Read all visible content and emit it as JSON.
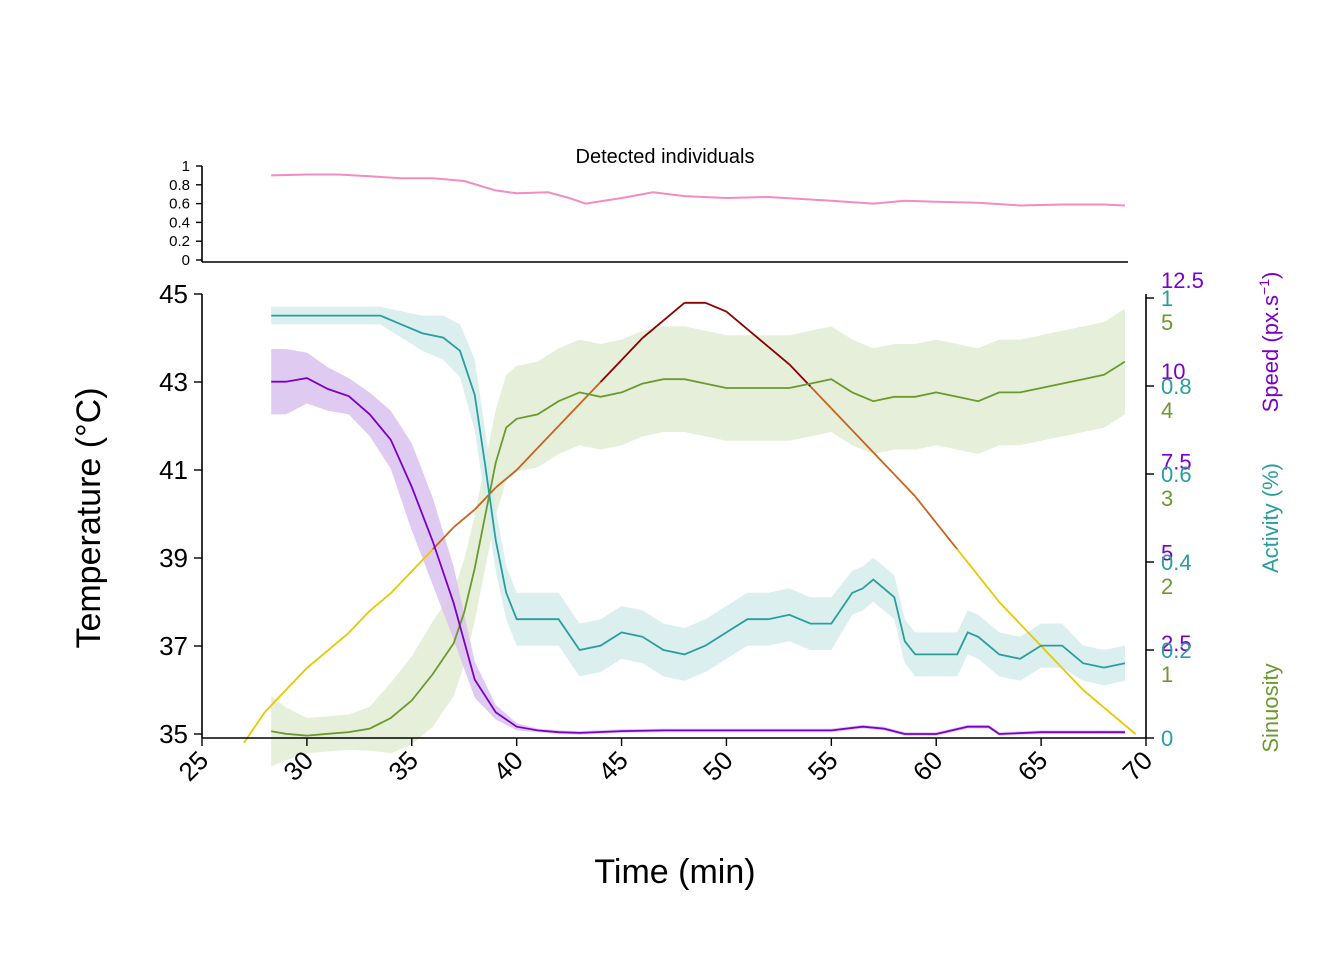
{
  "colors": {
    "axis": "#000000",
    "detected": "#f28cc2",
    "speed": "#7b00c8",
    "speed_band": "#d9c2ee",
    "activity": "#2a9d9d",
    "activity_band": "#d3eceb",
    "sinuosity": "#6b9a2e",
    "sinuosity_band": "#dde9cc",
    "temp_hot": "#8b0000",
    "temp_warm": "#c8641e",
    "temp_cool": "#e8c800"
  },
  "chart_data": [
    {
      "type": "line",
      "title": "Detected individuals",
      "ylim": [
        0,
        1
      ],
      "yticks": [
        "0",
        "0.2",
        "0.4",
        "0.6",
        "0.8",
        "1"
      ],
      "grid": false,
      "series": [
        {
          "x": [
            28.3,
            30,
            31.5,
            33,
            34.5,
            36,
            37.5,
            39,
            40,
            41.5,
            42.5,
            43.3,
            45,
            46.5,
            48,
            50,
            52,
            55,
            57,
            58.5,
            60,
            62,
            64,
            66,
            68,
            69
          ],
          "y": [
            0.9,
            0.91,
            0.91,
            0.89,
            0.87,
            0.87,
            0.84,
            0.74,
            0.71,
            0.72,
            0.66,
            0.6,
            0.66,
            0.72,
            0.68,
            0.66,
            0.67,
            0.63,
            0.6,
            0.63,
            0.62,
            0.61,
            0.58,
            0.59,
            0.59,
            0.58
          ]
        }
      ]
    },
    {
      "type": "line",
      "xlabel": "Time (min)",
      "ylabel": "Temperature (°C)",
      "xlim": [
        25,
        70
      ],
      "xticks": [
        "25",
        "30",
        "35",
        "40",
        "45",
        "50",
        "55",
        "60",
        "65",
        "70"
      ],
      "ylim": [
        35,
        45
      ],
      "yticks": [
        "35",
        "37",
        "39",
        "41",
        "43",
        "45"
      ],
      "grid": false,
      "secondary_axes": [
        {
          "label": "Speed (px.s−1)",
          "label_main": "Speed (px.s",
          "label_sup": "−1",
          "label_end": ")",
          "ylim": [
            0,
            12.5
          ],
          "ticks": [
            "2.5",
            "5",
            "7.5",
            "10",
            "12.5"
          ]
        },
        {
          "label": "Activity (%)",
          "ylim": [
            0,
            1
          ],
          "ticks": [
            "0",
            "0.2",
            "0.4",
            "0.6",
            "0.8",
            "1"
          ]
        },
        {
          "label": "Sinuosity",
          "ylim": [
            0,
            5
          ],
          "ticks": [
            "1",
            "2",
            "3",
            "4",
            "5"
          ]
        }
      ],
      "series": [
        {
          "name": "Temperature",
          "x": [
            27,
            28,
            29,
            30,
            31,
            32,
            33,
            34,
            35,
            36,
            37,
            38,
            39,
            40,
            41,
            42,
            43,
            44,
            45,
            46,
            47,
            48,
            49,
            50,
            51,
            52,
            53,
            54,
            55,
            56,
            57,
            58,
            59,
            60,
            61,
            62,
            63,
            64,
            65,
            66,
            67,
            68,
            69,
            69.5
          ],
          "y": [
            34.8,
            35.5,
            36.0,
            36.5,
            36.9,
            37.3,
            37.8,
            38.2,
            38.7,
            39.2,
            39.7,
            40.1,
            40.6,
            41.0,
            41.5,
            42.0,
            42.5,
            43.0,
            43.5,
            44.0,
            44.4,
            44.8,
            44.8,
            44.6,
            44.2,
            43.8,
            43.4,
            42.9,
            42.4,
            41.9,
            41.4,
            40.9,
            40.4,
            39.8,
            39.2,
            38.6,
            38.0,
            37.5,
            37.0,
            36.5,
            36.0,
            35.6,
            35.2,
            35.0
          ]
        },
        {
          "name": "Speed",
          "x": [
            28.3,
            29,
            30,
            31,
            32,
            33,
            34,
            35,
            36,
            37,
            38,
            39,
            40,
            41,
            42,
            43,
            45,
            47,
            50,
            52,
            55,
            56.5,
            57.5,
            58.5,
            60,
            61.5,
            62.5,
            63,
            65,
            67,
            69
          ],
          "y": [
            9.7,
            9.7,
            9.8,
            9.5,
            9.3,
            8.8,
            8.1,
            6.8,
            5.3,
            3.6,
            1.5,
            0.6,
            0.2,
            0.1,
            0.05,
            0.03,
            0.08,
            0.1,
            0.1,
            0.1,
            0.1,
            0.2,
            0.15,
            0.0,
            0.0,
            0.2,
            0.2,
            0.0,
            0.05,
            0.05,
            0.05
          ],
          "band": [
            0.9,
            0.9,
            0.7,
            0.6,
            0.5,
            0.6,
            0.8,
            1.2,
            1.2,
            1.0,
            0.5,
            0.2,
            0.1,
            0.05,
            0.05,
            0.05,
            0.05,
            0.05,
            0.05,
            0.05,
            0.05,
            0.05,
            0.05,
            0.05,
            0.05,
            0.05,
            0.05,
            0.05,
            0.05,
            0.05,
            0.05
          ]
        },
        {
          "name": "Activity",
          "x": [
            28.3,
            30,
            32,
            33.5,
            34.5,
            35.5,
            36.5,
            37.3,
            38,
            38.5,
            39,
            39.5,
            40,
            41,
            42,
            43,
            44,
            45,
            46,
            47,
            48,
            49,
            50,
            51,
            52,
            53,
            54,
            55,
            56,
            56.5,
            57,
            58,
            58.5,
            59,
            60,
            61,
            61.5,
            62,
            63,
            64,
            65,
            66,
            67,
            68,
            69
          ],
          "y": [
            0.96,
            0.96,
            0.96,
            0.96,
            0.94,
            0.92,
            0.91,
            0.88,
            0.78,
            0.62,
            0.45,
            0.33,
            0.27,
            0.27,
            0.27,
            0.2,
            0.21,
            0.24,
            0.23,
            0.2,
            0.19,
            0.21,
            0.24,
            0.27,
            0.27,
            0.28,
            0.26,
            0.26,
            0.33,
            0.34,
            0.36,
            0.32,
            0.22,
            0.19,
            0.19,
            0.19,
            0.24,
            0.23,
            0.19,
            0.18,
            0.21,
            0.21,
            0.17,
            0.16,
            0.17
          ],
          "band": [
            0.02,
            0.02,
            0.02,
            0.02,
            0.03,
            0.04,
            0.05,
            0.06,
            0.08,
            0.08,
            0.07,
            0.06,
            0.06,
            0.06,
            0.06,
            0.06,
            0.06,
            0.06,
            0.06,
            0.06,
            0.06,
            0.06,
            0.06,
            0.06,
            0.06,
            0.06,
            0.06,
            0.06,
            0.05,
            0.05,
            0.05,
            0.05,
            0.05,
            0.05,
            0.05,
            0.05,
            0.05,
            0.05,
            0.05,
            0.05,
            0.05,
            0.05,
            0.04,
            0.04,
            0.04
          ]
        },
        {
          "name": "Sinuosity",
          "x": [
            28.3,
            29,
            30,
            31,
            32,
            33,
            34,
            35,
            36,
            37,
            37.5,
            38,
            38.5,
            39,
            39.5,
            40,
            41,
            42,
            43,
            44,
            45,
            46,
            47,
            48,
            49,
            50,
            52,
            53,
            54,
            55,
            56,
            57,
            58,
            59,
            60,
            61,
            62,
            63,
            64,
            65,
            66,
            67,
            68,
            69
          ],
          "y": [
            0.35,
            0.32,
            0.3,
            0.32,
            0.34,
            0.38,
            0.5,
            0.7,
            1.0,
            1.35,
            1.7,
            2.2,
            2.8,
            3.4,
            3.8,
            3.9,
            3.95,
            4.1,
            4.2,
            4.15,
            4.2,
            4.3,
            4.35,
            4.35,
            4.3,
            4.25,
            4.25,
            4.25,
            4.3,
            4.35,
            4.2,
            4.1,
            4.15,
            4.15,
            4.2,
            4.15,
            4.1,
            4.2,
            4.2,
            4.25,
            4.3,
            4.35,
            4.4,
            4.55
          ],
          "band": [
            0.4,
            0.3,
            0.2,
            0.2,
            0.2,
            0.25,
            0.4,
            0.5,
            0.6,
            0.6,
            0.6,
            0.6,
            0.6,
            0.6,
            0.6,
            0.6,
            0.6,
            0.6,
            0.6,
            0.6,
            0.6,
            0.6,
            0.6,
            0.6,
            0.6,
            0.6,
            0.6,
            0.6,
            0.6,
            0.6,
            0.6,
            0.6,
            0.6,
            0.6,
            0.6,
            0.6,
            0.6,
            0.6,
            0.6,
            0.6,
            0.6,
            0.6,
            0.6,
            0.6
          ]
        }
      ]
    }
  ]
}
